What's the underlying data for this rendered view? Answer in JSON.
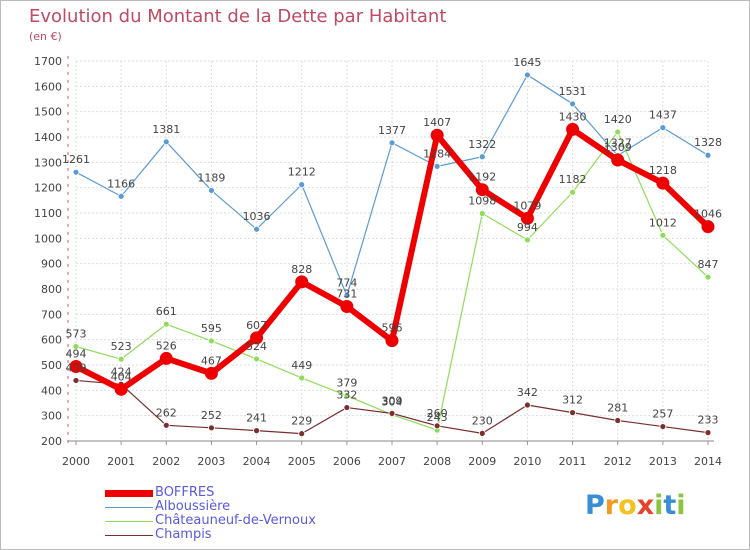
{
  "title": "Evolution du Montant de la Dette par Habitant",
  "subtitle": "(en €)",
  "logo": {
    "letters": [
      {
        "ch": "P",
        "color": "#3a8fd4"
      },
      {
        "ch": "r",
        "color": "#f29a1e"
      },
      {
        "ch": "o",
        "color": "#f2c21e"
      },
      {
        "ch": "x",
        "color": "#e8422c"
      },
      {
        "ch": "i",
        "color": "#8cc43f"
      },
      {
        "ch": "t",
        "color": "#3a8fd4"
      },
      {
        "ch": "i",
        "color": "#8cc43f"
      }
    ]
  },
  "chart_data": {
    "type": "line",
    "title": "Evolution du Montant de la Dette par Habitant",
    "subtitle": "(en €)",
    "xlabel": "",
    "ylabel": "",
    "ylim": [
      200,
      1700
    ],
    "yticks": [
      200,
      300,
      400,
      500,
      600,
      700,
      800,
      900,
      1000,
      1100,
      1200,
      1300,
      1400,
      1500,
      1600,
      1700
    ],
    "grid": true,
    "legend_position": "bottom-left",
    "x": [
      "2000",
      "2001",
      "2002",
      "2003",
      "2004",
      "2005",
      "2006",
      "2007",
      "2008",
      "2009",
      "2010",
      "2011",
      "2012",
      "2013",
      "2014"
    ],
    "series": [
      {
        "name": "BOFFRES",
        "color": "#ee0000",
        "width": 6,
        "values": [
          494,
          404,
          526,
          467,
          607,
          828,
          731,
          596,
          1407,
          1192,
          1079,
          1430,
          1309,
          1218,
          1046
        ]
      },
      {
        "name": "Alboussière",
        "color": "#5b9bd5",
        "width": 1.2,
        "values": [
          1261,
          1166,
          1381,
          1189,
          1036,
          1212,
          774,
          1377,
          1284,
          1322,
          1645,
          1531,
          1327,
          1437,
          1328
        ]
      },
      {
        "name": "Châteauneuf-de-Vernoux",
        "color": "#8fdc5a",
        "width": 1.2,
        "values": [
          573,
          523,
          661,
          595,
          524,
          449,
          379,
          304,
          243,
          1098,
          994,
          1182,
          1420,
          1012,
          847
        ]
      },
      {
        "name": "Champis",
        "color": "#7a2e2e",
        "width": 1.2,
        "values": [
          439,
          424,
          262,
          252,
          241,
          229,
          332,
          309,
          260,
          230,
          342,
          312,
          281,
          257,
          233
        ]
      }
    ]
  }
}
